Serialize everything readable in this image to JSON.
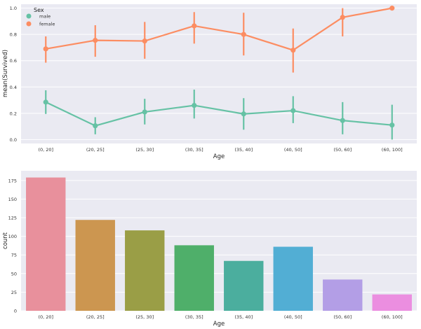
{
  "chart_data": [
    {
      "type": "line",
      "ylabel": "mean(Survived)",
      "xlabel": "Age",
      "categories": [
        "(0, 20]",
        "(20, 25]",
        "(25, 30]",
        "(30, 35]",
        "(35, 40]",
        "(40, 50]",
        "(50, 60]",
        "(60, 100]"
      ],
      "ylim": [
        -0.03,
        1.03
      ],
      "yticks": [
        0.0,
        0.2,
        0.4,
        0.6,
        0.8,
        1.0
      ],
      "ytick_labels": [
        "0.0",
        "0.2",
        "0.4",
        "0.6",
        "0.8",
        "1.0"
      ],
      "grid": true,
      "legend": {
        "title": "Sex",
        "position": "top-left"
      },
      "series": [
        {
          "name": "male",
          "color": "#66c2a5",
          "values": [
            0.285,
            0.105,
            0.21,
            0.26,
            0.195,
            0.22,
            0.145,
            0.11
          ],
          "ci_low": [
            0.195,
            0.04,
            0.115,
            0.16,
            0.075,
            0.125,
            0.04,
            0.0
          ],
          "ci_high": [
            0.375,
            0.17,
            0.31,
            0.38,
            0.315,
            0.33,
            0.285,
            0.265
          ]
        },
        {
          "name": "female",
          "color": "#fc8d62",
          "values": [
            0.69,
            0.755,
            0.75,
            0.865,
            0.8,
            0.68,
            0.93,
            1.0
          ],
          "ci_low": [
            0.585,
            0.63,
            0.615,
            0.73,
            0.64,
            0.51,
            0.785,
            1.0
          ],
          "ci_high": [
            0.785,
            0.87,
            0.895,
            0.97,
            0.965,
            0.845,
            1.0,
            1.0
          ]
        }
      ]
    },
    {
      "type": "bar",
      "ylabel": "count",
      "xlabel": "Age",
      "categories": [
        "(0, 20]",
        "(20, 25]",
        "(25, 30]",
        "(30, 35]",
        "(35, 40]",
        "(40, 50]",
        "(50, 60]",
        "(60, 100]"
      ],
      "values": [
        179,
        122,
        108,
        88,
        67,
        86,
        42,
        22
      ],
      "colors": [
        "#e8909c",
        "#cc9650",
        "#9a9e46",
        "#4faf6a",
        "#4bae9e",
        "#52aed4",
        "#b39ee6",
        "#eb8ee0"
      ],
      "ylim": [
        0,
        188
      ],
      "yticks": [
        0,
        25,
        50,
        75,
        100,
        125,
        150,
        175
      ],
      "ytick_labels": [
        "0",
        "25",
        "50",
        "75",
        "100",
        "125",
        "150",
        "175"
      ],
      "grid": true
    }
  ]
}
